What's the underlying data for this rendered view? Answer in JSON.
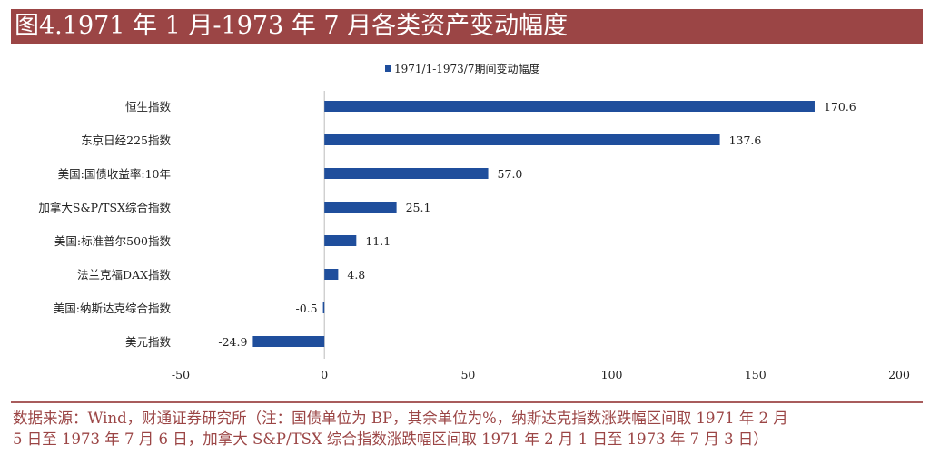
{
  "header": {
    "title": "图4.1971 年 1 月-1973 年 7 月各类资产变动幅度"
  },
  "chart_data": {
    "type": "bar",
    "orientation": "horizontal",
    "categories": [
      "恒生指数",
      "东京日经225指数",
      "美国:国债收益率:10年",
      "加拿大S&P/TSX综合指数",
      "美国:标准普尔500指数",
      "法兰克福DAX指数",
      "美国:纳斯达克综合指数",
      "美元指数"
    ],
    "series": [
      {
        "name": "1971/1-1973/7期间变动幅度",
        "values": [
          170.6,
          137.6,
          57.0,
          25.1,
          11.1,
          4.8,
          -0.5,
          -24.9
        ],
        "color": "#1f4e9c"
      }
    ],
    "value_labels": [
      "170.6",
      "137.6",
      "57.0",
      "25.1",
      "11.1",
      "4.8",
      "-0.5",
      "-24.9"
    ],
    "xlim": [
      -50,
      200
    ],
    "xticks": [
      "-50",
      "0",
      "50",
      "100",
      "150",
      "200"
    ],
    "grid": false,
    "legend_position": "top-right"
  },
  "footer": {
    "lines": [
      "数据来源：Wind，财通证券研究所（注：国债单位为 BP，其余单位为%，纳斯达克指数涨跌幅区间取 1971 年 2 月",
      "5 日至 1973 年 7 月 6 日，加拿大 S&P/TSX 综合指数涨跌幅区间取 1971 年 2 月 1 日至 1973 年 7 月 3 日）"
    ]
  }
}
